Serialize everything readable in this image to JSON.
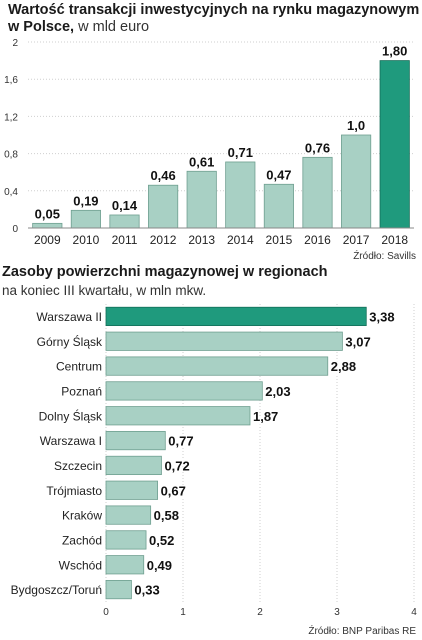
{
  "chart_data": [
    {
      "type": "bar",
      "title": "Wartość transakcji inwestycyjnych na rynku magazynowym w Polsce,",
      "subtitle": "w mld euro",
      "categories": [
        "2009",
        "2010",
        "2011",
        "2012",
        "2013",
        "2014",
        "2015",
        "2016",
        "2017",
        "2018"
      ],
      "values": [
        0.05,
        0.19,
        0.14,
        0.46,
        0.61,
        0.71,
        0.47,
        0.76,
        1.0,
        1.8
      ],
      "data_labels": [
        "0,05",
        "0,19",
        "0,14",
        "0,46",
        "0,61",
        "0,71",
        "0,47",
        "0,76",
        "1,0",
        "1,80"
      ],
      "y_ticks": [
        "0",
        "0,4",
        "0,8",
        "1,2",
        "1,6",
        "2"
      ],
      "ylim": [
        0,
        2
      ],
      "grid": true,
      "highlight_index": 9,
      "source": "Źródło: Savills"
    },
    {
      "type": "bar",
      "orientation": "horizontal",
      "title": "Zasoby powierzchni magazynowej w regionach",
      "subtitle": "na koniec III kwartału, w mln mkw.",
      "categories": [
        "Warszawa II",
        "Górny Śląsk",
        "Centrum",
        "Poznań",
        "Dolny Śląsk",
        "Warszawa I",
        "Szczecin",
        "Trójmiasto",
        "Kraków",
        "Zachód",
        "Wschód",
        "Bydgoszcz/Toruń"
      ],
      "values": [
        3.38,
        3.07,
        2.88,
        2.03,
        1.87,
        0.77,
        0.72,
        0.67,
        0.58,
        0.52,
        0.49,
        0.33
      ],
      "data_labels": [
        "3,38",
        "3,07",
        "2,88",
        "2,03",
        "1,87",
        "0,77",
        "0,72",
        "0,67",
        "0,58",
        "0,52",
        "0,49",
        "0,33"
      ],
      "x_ticks": [
        "0",
        "1",
        "2",
        "3",
        "4"
      ],
      "xlim": [
        0,
        4
      ],
      "grid": true,
      "highlight_index": 0,
      "source": "Źródło: BNP Paribas RE"
    }
  ],
  "colors": {
    "bar": "#a8d0c4",
    "bar_stroke": "#6f9f90",
    "highlight": "#1f9a7d",
    "grid": "#cfcfcf",
    "label_outline": "#ffffff"
  }
}
